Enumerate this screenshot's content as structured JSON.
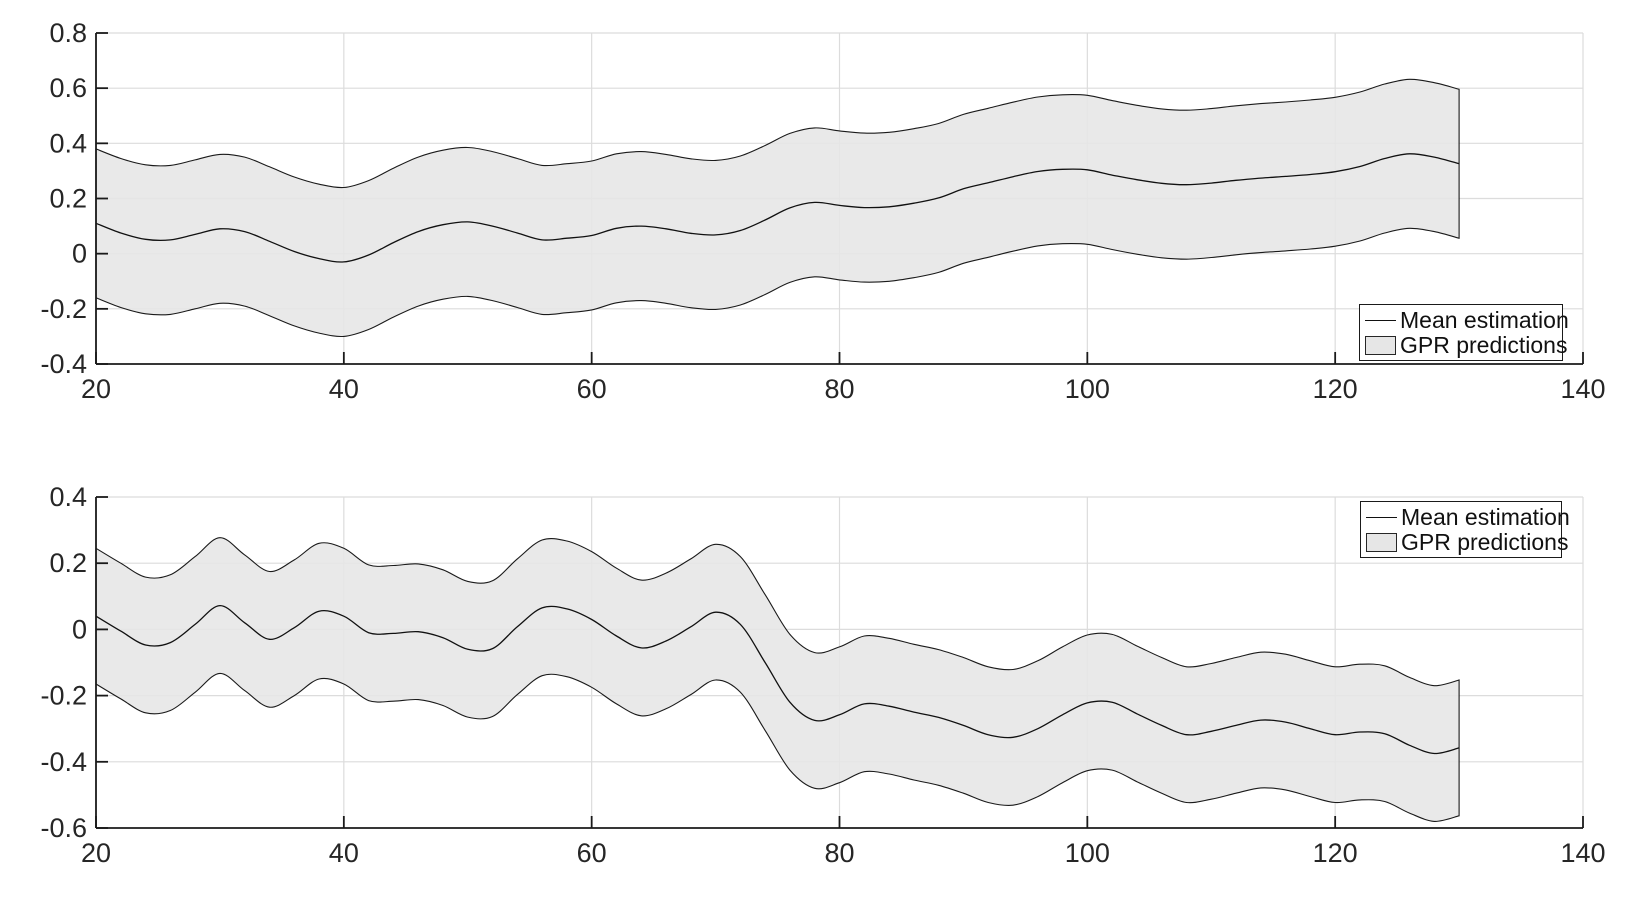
{
  "figure": {
    "background": "#ffffff",
    "title": ""
  },
  "colors": {
    "band_fill": "#e6e6e6",
    "band_edge": "#1a1a1a",
    "mean_line": "#111111",
    "grid": "#dcdcdc",
    "axis": "#1a1a1a",
    "tick_text": "#262626",
    "legend_border": "#1a1a1a",
    "legend_bg": "#ffffff"
  },
  "chart_data": [
    {
      "type": "line",
      "title": "",
      "xlabel": "",
      "ylabel": "",
      "xlim": [
        20,
        140
      ],
      "ylim": [
        -0.4,
        0.8
      ],
      "xtick_values": [
        20,
        40,
        60,
        80,
        100,
        120,
        140
      ],
      "xtick_labels": [
        "20",
        "40",
        "60",
        "80",
        "100",
        "120",
        "140"
      ],
      "ytick_values": [
        -0.4,
        -0.2,
        0,
        0.2,
        0.4,
        0.6,
        0.8
      ],
      "ytick_labels": [
        "-0.4",
        "-0.2",
        "0",
        "0.2",
        "0.4",
        "0.6",
        "0.8"
      ],
      "grid": true,
      "legend": {
        "position": "bottom-right-inside",
        "entries": [
          "Mean estimation",
          "GPR predictions"
        ]
      },
      "band_halfwidth": 0.27,
      "x": [
        20,
        22,
        24,
        26,
        28,
        30,
        32,
        34,
        36,
        38,
        40,
        42,
        44,
        46,
        48,
        50,
        52,
        54,
        56,
        58,
        60,
        62,
        64,
        66,
        68,
        70,
        72,
        74,
        76,
        78,
        80,
        82,
        84,
        86,
        88,
        90,
        92,
        94,
        96,
        98,
        100,
        102,
        104,
        106,
        108,
        110,
        112,
        114,
        116,
        118,
        120,
        122,
        124,
        126,
        128,
        130
      ],
      "series": [
        {
          "name": "Mean estimation",
          "role": "mean",
          "values": [
            0.11,
            0.075,
            0.052,
            0.05,
            0.07,
            0.09,
            0.08,
            0.045,
            0.008,
            -0.018,
            -0.03,
            -0.005,
            0.04,
            0.08,
            0.105,
            0.115,
            0.1,
            0.075,
            0.05,
            0.056,
            0.066,
            0.092,
            0.1,
            0.09,
            0.074,
            0.068,
            0.084,
            0.122,
            0.166,
            0.186,
            0.175,
            0.167,
            0.17,
            0.183,
            0.202,
            0.235,
            0.257,
            0.279,
            0.298,
            0.306,
            0.304,
            0.285,
            0.268,
            0.255,
            0.25,
            0.256,
            0.266,
            0.274,
            0.28,
            0.287,
            0.297,
            0.316,
            0.345,
            0.362,
            0.35,
            0.326
          ]
        },
        {
          "name": "GPR predictions (upper bound)",
          "role": "band-upper",
          "values": [
            0.38,
            0.345,
            0.322,
            0.32,
            0.34,
            0.36,
            0.35,
            0.315,
            0.278,
            0.252,
            0.24,
            0.265,
            0.31,
            0.35,
            0.375,
            0.385,
            0.37,
            0.345,
            0.32,
            0.326,
            0.336,
            0.362,
            0.37,
            0.36,
            0.344,
            0.338,
            0.354,
            0.392,
            0.436,
            0.456,
            0.445,
            0.437,
            0.44,
            0.453,
            0.472,
            0.505,
            0.527,
            0.549,
            0.568,
            0.576,
            0.574,
            0.555,
            0.538,
            0.525,
            0.52,
            0.526,
            0.536,
            0.544,
            0.55,
            0.557,
            0.567,
            0.586,
            0.615,
            0.632,
            0.62,
            0.596
          ]
        },
        {
          "name": "GPR predictions (lower bound)",
          "role": "band-lower",
          "values": [
            -0.16,
            -0.195,
            -0.218,
            -0.22,
            -0.2,
            -0.18,
            -0.19,
            -0.225,
            -0.262,
            -0.288,
            -0.3,
            -0.275,
            -0.23,
            -0.19,
            -0.165,
            -0.155,
            -0.17,
            -0.195,
            -0.22,
            -0.214,
            -0.204,
            -0.178,
            -0.17,
            -0.18,
            -0.196,
            -0.202,
            -0.186,
            -0.148,
            -0.104,
            -0.084,
            -0.095,
            -0.103,
            -0.1,
            -0.087,
            -0.068,
            -0.035,
            -0.013,
            0.009,
            0.028,
            0.036,
            0.034,
            0.015,
            -0.002,
            -0.015,
            -0.02,
            -0.014,
            -0.004,
            0.004,
            0.01,
            0.017,
            0.027,
            0.046,
            0.075,
            0.092,
            0.08,
            0.056
          ]
        }
      ]
    },
    {
      "type": "line",
      "title": "",
      "xlabel": "",
      "ylabel": "",
      "xlim": [
        20,
        140
      ],
      "ylim": [
        -0.6,
        0.4
      ],
      "xtick_values": [
        20,
        40,
        60,
        80,
        100,
        120,
        140
      ],
      "xtick_labels": [
        "20",
        "40",
        "60",
        "80",
        "100",
        "120",
        "140"
      ],
      "ytick_values": [
        -0.6,
        -0.4,
        -0.2,
        0,
        0.2,
        0.4
      ],
      "ytick_labels": [
        "-0.6",
        "-0.4",
        "-0.2",
        "0",
        "0.2",
        "0.4"
      ],
      "grid": true,
      "legend": {
        "position": "top-right-inside",
        "entries": [
          "Mean estimation",
          "GPR predictions"
        ]
      },
      "band_halfwidth": 0.205,
      "x": [
        20,
        22,
        24,
        26,
        28,
        30,
        32,
        34,
        36,
        38,
        40,
        42,
        44,
        46,
        48,
        50,
        52,
        54,
        56,
        58,
        60,
        62,
        64,
        66,
        68,
        70,
        72,
        74,
        76,
        78,
        80,
        82,
        84,
        86,
        88,
        90,
        92,
        94,
        96,
        98,
        100,
        102,
        104,
        106,
        108,
        110,
        112,
        114,
        116,
        118,
        120,
        122,
        124,
        126,
        128,
        130
      ],
      "series": [
        {
          "name": "Mean estimation",
          "role": "mean",
          "values": [
            0.04,
            -0.005,
            -0.047,
            -0.04,
            0.015,
            0.072,
            0.02,
            -0.03,
            0.005,
            0.055,
            0.04,
            -0.01,
            -0.012,
            -0.007,
            -0.025,
            -0.06,
            -0.058,
            0.008,
            0.065,
            0.062,
            0.03,
            -0.02,
            -0.056,
            -0.035,
            0.008,
            0.052,
            0.015,
            -0.1,
            -0.22,
            -0.275,
            -0.258,
            -0.225,
            -0.232,
            -0.25,
            -0.266,
            -0.29,
            -0.318,
            -0.326,
            -0.3,
            -0.258,
            -0.222,
            -0.22,
            -0.255,
            -0.29,
            -0.318,
            -0.308,
            -0.29,
            -0.274,
            -0.28,
            -0.3,
            -0.318,
            -0.31,
            -0.315,
            -0.35,
            -0.375,
            -0.358
          ]
        },
        {
          "name": "GPR predictions (upper bound)",
          "role": "band-upper",
          "values": [
            0.245,
            0.2,
            0.158,
            0.165,
            0.22,
            0.277,
            0.225,
            0.175,
            0.21,
            0.26,
            0.245,
            0.195,
            0.193,
            0.198,
            0.18,
            0.145,
            0.147,
            0.213,
            0.27,
            0.267,
            0.235,
            0.185,
            0.149,
            0.17,
            0.213,
            0.257,
            0.22,
            0.105,
            -0.015,
            -0.07,
            -0.053,
            -0.02,
            -0.027,
            -0.045,
            -0.061,
            -0.085,
            -0.113,
            -0.121,
            -0.095,
            -0.053,
            -0.017,
            -0.015,
            -0.05,
            -0.085,
            -0.113,
            -0.103,
            -0.085,
            -0.069,
            -0.075,
            -0.095,
            -0.113,
            -0.105,
            -0.11,
            -0.145,
            -0.17,
            -0.153
          ]
        },
        {
          "name": "GPR predictions (lower bound)",
          "role": "band-lower",
          "values": [
            -0.165,
            -0.21,
            -0.252,
            -0.245,
            -0.19,
            -0.133,
            -0.185,
            -0.235,
            -0.2,
            -0.15,
            -0.165,
            -0.215,
            -0.217,
            -0.212,
            -0.23,
            -0.265,
            -0.263,
            -0.197,
            -0.14,
            -0.143,
            -0.175,
            -0.225,
            -0.261,
            -0.24,
            -0.197,
            -0.153,
            -0.19,
            -0.305,
            -0.425,
            -0.48,
            -0.463,
            -0.43,
            -0.437,
            -0.455,
            -0.471,
            -0.495,
            -0.523,
            -0.531,
            -0.505,
            -0.463,
            -0.427,
            -0.425,
            -0.46,
            -0.495,
            -0.523,
            -0.513,
            -0.495,
            -0.479,
            -0.485,
            -0.505,
            -0.523,
            -0.515,
            -0.52,
            -0.555,
            -0.58,
            -0.563
          ]
        }
      ]
    }
  ]
}
